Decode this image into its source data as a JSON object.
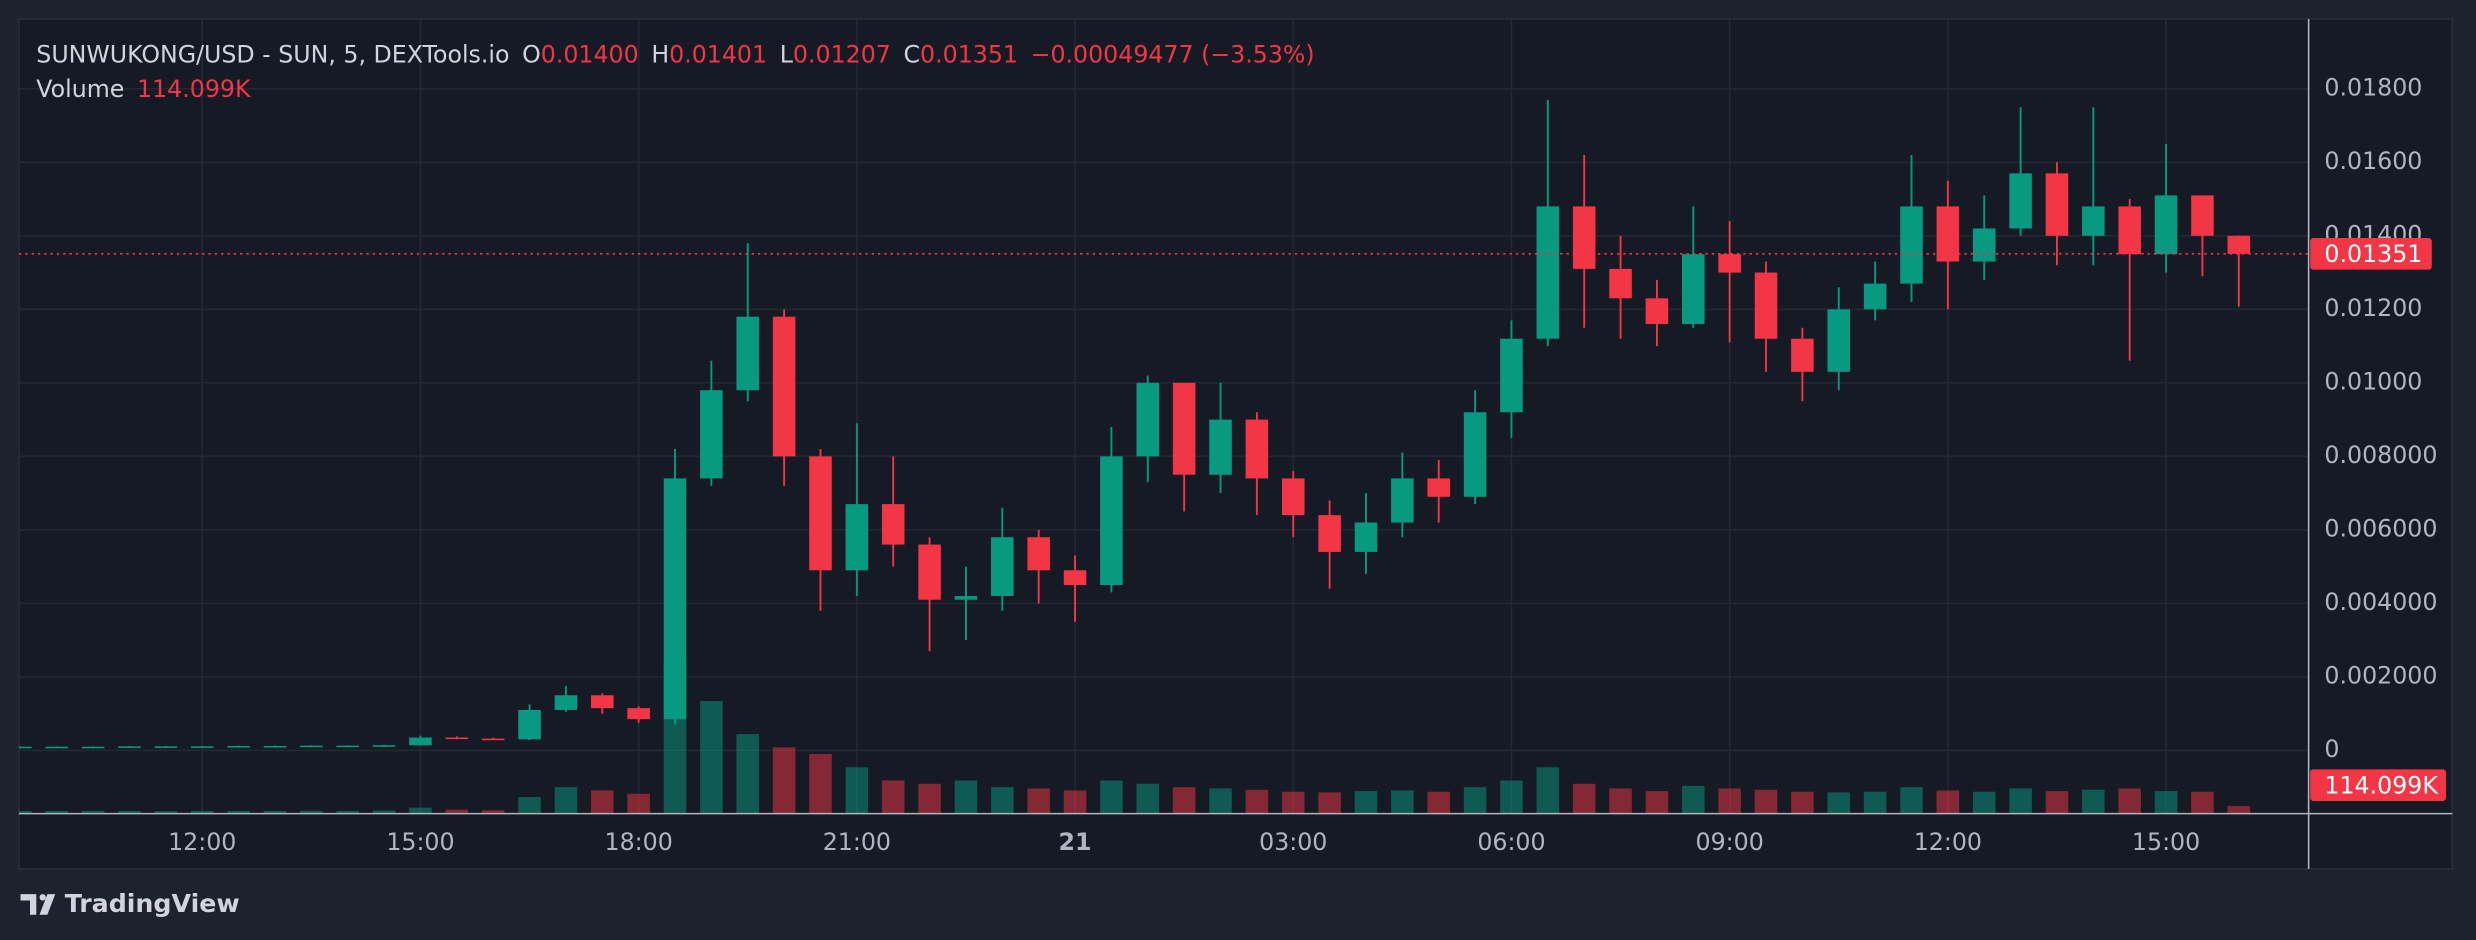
{
  "chart_data": {
    "type": "candlestick",
    "symbol": "SUNWUKONG/USD - SUN, 5, DEXTools.io",
    "ohlc_legend": [
      {
        "key": "O",
        "value": "0.01400"
      },
      {
        "key": "H",
        "value": "0.01401"
      },
      {
        "key": "L",
        "value": "0.01207"
      },
      {
        "key": "C",
        "value": "0.01351"
      }
    ],
    "change": "−0.00049477 (−3.53%)",
    "volume_name": "Volume",
    "volume_value_label": "114.099K",
    "x": [
      9.5,
      10,
      10.5,
      11,
      11.5,
      12,
      12.5,
      13,
      13.5,
      14,
      14.5,
      15,
      15.5,
      16,
      16.5,
      17,
      17.5,
      18,
      18.5,
      19,
      19.5,
      20,
      20.5,
      21,
      21.5,
      22,
      22.5,
      23,
      23.5,
      24,
      24.5,
      25,
      25.5,
      26,
      26.5,
      27,
      27.5,
      28,
      28.5,
      29,
      29.5,
      30,
      30.5,
      31,
      31.5,
      32,
      32.5,
      33,
      33.5,
      34,
      34.5,
      35,
      35.5,
      36,
      36.5,
      37,
      37.5,
      38,
      38.5,
      39,
      39.5,
      40
    ],
    "open": [
      0.0001,
      0.0001,
      0.0001,
      0.0001,
      0.00011,
      0.00011,
      0.00011,
      0.00012,
      0.00012,
      0.00013,
      0.00013,
      0.00014,
      0.00035,
      0.00032,
      0.0003,
      0.0011,
      0.0015,
      0.00115,
      0.00085,
      0.0074,
      0.0098,
      0.0118,
      0.008,
      0.0049,
      0.0067,
      0.0056,
      0.0041,
      0.0042,
      0.0058,
      0.0049,
      0.0045,
      0.008,
      0.01,
      0.0075,
      0.009,
      0.0074,
      0.0064,
      0.0054,
      0.0062,
      0.0074,
      0.0069,
      0.0092,
      0.0112,
      0.0148,
      0.0131,
      0.0123,
      0.0116,
      0.0135,
      0.013,
      0.0112,
      0.0103,
      0.012,
      0.0127,
      0.0148,
      0.0133,
      0.0142,
      0.0157,
      0.014,
      0.0148,
      0.0135,
      0.0151,
      0.014
    ],
    "high": [
      0.00011,
      0.00011,
      0.00011,
      0.00012,
      0.00012,
      0.00012,
      0.00013,
      0.00013,
      0.00014,
      0.00014,
      0.00015,
      0.0004,
      0.00038,
      0.00034,
      0.00125,
      0.00175,
      0.00155,
      0.0012,
      0.0082,
      0.0106,
      0.0138,
      0.012,
      0.0082,
      0.0089,
      0.008,
      0.0058,
      0.005,
      0.0066,
      0.006,
      0.0053,
      0.0088,
      0.0102,
      0.01,
      0.01,
      0.0092,
      0.0076,
      0.0068,
      0.007,
      0.0081,
      0.0079,
      0.0098,
      0.0117,
      0.0177,
      0.0162,
      0.014,
      0.0128,
      0.0148,
      0.0144,
      0.0133,
      0.0115,
      0.0126,
      0.0133,
      0.0162,
      0.0155,
      0.0151,
      0.0175,
      0.016,
      0.0175,
      0.015,
      0.0165,
      0.0151,
      0.01401
    ],
    "low": [
      9e-05,
      9e-05,
      9e-05,
      0.0001,
      0.0001,
      0.0001,
      0.00011,
      0.00011,
      0.00012,
      0.00012,
      0.00013,
      0.00014,
      0.0003,
      0.00029,
      0.00028,
      0.00105,
      0.001,
      0.00075,
      0.0007,
      0.0072,
      0.0095,
      0.0072,
      0.0038,
      0.0042,
      0.005,
      0.0027,
      0.003,
      0.0038,
      0.004,
      0.0035,
      0.0043,
      0.0073,
      0.0065,
      0.007,
      0.0064,
      0.0058,
      0.0044,
      0.0048,
      0.0058,
      0.0062,
      0.0067,
      0.0085,
      0.011,
      0.0115,
      0.0112,
      0.011,
      0.0115,
      0.0111,
      0.0103,
      0.0095,
      0.0098,
      0.0117,
      0.0122,
      0.012,
      0.0128,
      0.014,
      0.0132,
      0.0132,
      0.0106,
      0.013,
      0.0129,
      0.01207
    ],
    "close": [
      0.0001,
      0.0001,
      0.0001,
      0.00011,
      0.00011,
      0.00011,
      0.00012,
      0.00012,
      0.00013,
      0.00013,
      0.00014,
      0.00035,
      0.00032,
      0.0003,
      0.0011,
      0.0015,
      0.00115,
      0.00085,
      0.0074,
      0.0098,
      0.0118,
      0.008,
      0.0049,
      0.0067,
      0.0056,
      0.0041,
      0.0042,
      0.0058,
      0.0049,
      0.0045,
      0.008,
      0.01,
      0.0075,
      0.009,
      0.0074,
      0.0064,
      0.0054,
      0.0062,
      0.0074,
      0.0069,
      0.0092,
      0.0112,
      0.0148,
      0.0131,
      0.0123,
      0.0116,
      0.0135,
      0.013,
      0.0112,
      0.0103,
      0.012,
      0.0127,
      0.0148,
      0.0133,
      0.0142,
      0.0157,
      0.014,
      0.0148,
      0.0135,
      0.0151,
      0.014,
      0.01351
    ],
    "volume": [
      40000,
      40000,
      42000,
      40000,
      38000,
      40000,
      41000,
      40000,
      43000,
      40000,
      45000,
      90000,
      60000,
      50000,
      250000,
      400000,
      350000,
      300000,
      2300000,
      1700000,
      1200000,
      1000000,
      900000,
      700000,
      500000,
      450000,
      500000,
      400000,
      380000,
      350000,
      500000,
      450000,
      400000,
      380000,
      360000,
      330000,
      320000,
      340000,
      350000,
      330000,
      400000,
      500000,
      700000,
      450000,
      380000,
      340000,
      420000,
      380000,
      360000,
      330000,
      320000,
      330000,
      400000,
      350000,
      330000,
      380000,
      340000,
      360000,
      380000,
      340000,
      330000,
      114099
    ],
    "up_color": "#089981",
    "down_color": "#f23645",
    "xlim": [
      9.48,
      40.96
    ],
    "xticks": [
      {
        "value": 12,
        "label": "12:00"
      },
      {
        "value": 15,
        "label": "15:00"
      },
      {
        "value": 18,
        "label": "18:00"
      },
      {
        "value": 21,
        "label": "21:00"
      },
      {
        "value": 24,
        "label": "21"
      },
      {
        "value": 27,
        "label": "03:00"
      },
      {
        "value": 30,
        "label": "06:00"
      },
      {
        "value": 33,
        "label": "09:00"
      },
      {
        "value": 36,
        "label": "12:00"
      },
      {
        "value": 39,
        "label": "15:00"
      }
    ],
    "ylim": [
      -0.00172,
      0.0199
    ],
    "yticks": [
      0,
      {
        "value": 0.002,
        "label": "0.002000"
      },
      {
        "value": 0.004,
        "label": "0.004000"
      },
      {
        "value": 0.006,
        "label": "0.006000"
      },
      {
        "value": 0.008,
        "label": "0.008000"
      },
      {
        "value": 0.01,
        "label": "0.01000"
      },
      {
        "value": 0.012,
        "label": "0.01200"
      },
      {
        "value": 0.014,
        "label": "0.01400"
      },
      {
        "value": 0.016,
        "label": "0.01600"
      },
      {
        "value": 0.018,
        "label": "0.01800"
      }
    ],
    "y2lim": [
      0,
      12000000
    ],
    "grid": true
  },
  "branding": "TradingView"
}
